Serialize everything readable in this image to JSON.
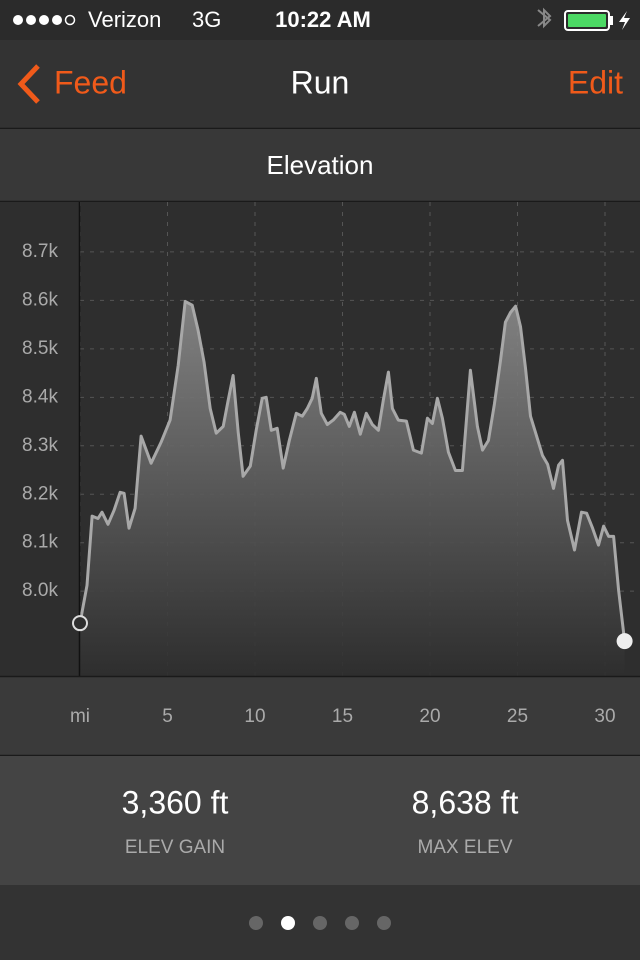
{
  "status_bar": {
    "carrier": "Verizon",
    "network": "3G",
    "time": "10:22 AM"
  },
  "nav": {
    "back": "Feed",
    "title": "Run",
    "action": "Edit"
  },
  "chart_data": {
    "type": "area",
    "title": "Elevation",
    "x": [
      0,
      0.4,
      0.69,
      1.03,
      1.26,
      1.6,
      1.95,
      2.29,
      2.52,
      2.8,
      3.15,
      3.49,
      4.06,
      4.63,
      5.15,
      5.61,
      6.01,
      6.41,
      6.75,
      7.09,
      7.44,
      7.78,
      8.18,
      8.47,
      8.75,
      9.04,
      9.32,
      9.73,
      10.07,
      10.41,
      10.64,
      10.93,
      11.27,
      11.61,
      11.96,
      12.36,
      12.7,
      12.99,
      13.27,
      13.5,
      13.79,
      14.13,
      14.47,
      14.87,
      15.1,
      15.39,
      15.68,
      16.02,
      16.36,
      16.7,
      17.05,
      17.33,
      17.62,
      17.85,
      18.19,
      18.65,
      19.05,
      19.51,
      19.85,
      20.14,
      20.42,
      20.71,
      21.05,
      21.45,
      21.85,
      22.31,
      22.71,
      23,
      23.34,
      23.68,
      24.03,
      24.31,
      24.6,
      24.89,
      25.17,
      25.46,
      25.74,
      26.09,
      26.43,
      26.72,
      27.06,
      27.35,
      27.57,
      27.86,
      28.26,
      28.66,
      28.95,
      29.29,
      29.63,
      29.92,
      30.21,
      30.49,
      30.78,
      31.12
    ],
    "values": [
      7934,
      8012,
      8155,
      8150,
      8163,
      8138,
      8167,
      8204,
      8202,
      8130,
      8171,
      8320,
      8264,
      8307,
      8353,
      8466,
      8598,
      8590,
      8538,
      8472,
      8377,
      8326,
      8340,
      8394,
      8445,
      8328,
      8237,
      8258,
      8332,
      8398,
      8400,
      8332,
      8336,
      8254,
      8311,
      8367,
      8361,
      8377,
      8398,
      8439,
      8367,
      8344,
      8353,
      8369,
      8365,
      8340,
      8369,
      8324,
      8367,
      8344,
      8332,
      8394,
      8452,
      8377,
      8353,
      8351,
      8291,
      8285,
      8357,
      8346,
      8398,
      8357,
      8287,
      8249,
      8249,
      8456,
      8340,
      8291,
      8311,
      8386,
      8476,
      8555,
      8575,
      8588,
      8546,
      8460,
      8361,
      8320,
      8280,
      8262,
      8212,
      8260,
      8270,
      8146,
      8085,
      8163,
      8161,
      8130,
      8095,
      8134,
      8113,
      8113,
      8002,
      7897
    ],
    "color": "#a8a8a8",
    "xlim": [
      0,
      32
    ],
    "xticks": [
      {
        "value": 0,
        "label": "mi"
      },
      5,
      10,
      15,
      20,
      25,
      30
    ],
    "ylim": [
      7825,
      8803
    ],
    "yticks": [
      {
        "value": 8000,
        "label": "8.0k"
      },
      {
        "value": 8100,
        "label": "8.1k"
      },
      {
        "value": 8200,
        "label": "8.2k"
      },
      {
        "value": 8300,
        "label": "8.3k"
      },
      {
        "value": 8400,
        "label": "8.4k"
      },
      {
        "value": 8500,
        "label": "8.5k"
      },
      {
        "value": 8600,
        "label": "8.6k"
      },
      {
        "value": 8700,
        "label": "8.7k"
      }
    ],
    "grid": true
  },
  "stats": [
    {
      "value": "3,360 ft",
      "label": "ELEV GAIN"
    },
    {
      "value": "8,638 ft",
      "label": "MAX ELEV"
    }
  ]
}
